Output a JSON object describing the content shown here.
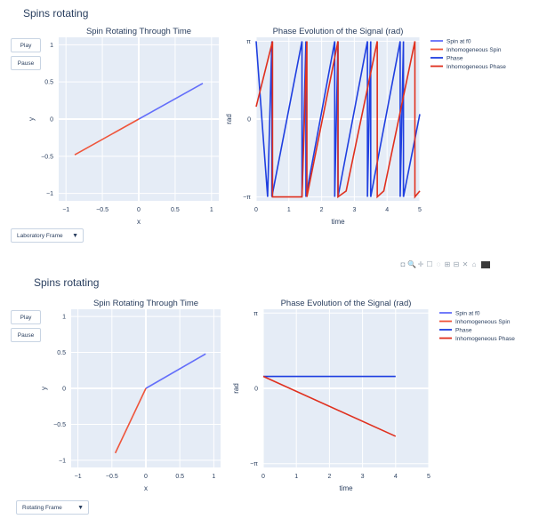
{
  "chart_data": [
    {
      "type": "line",
      "title": "Spin Rotating Through Time",
      "xlabel": "x",
      "ylabel": "y",
      "xlim": [
        -1.1,
        1.1
      ],
      "ylim": [
        -1.1,
        1.1
      ],
      "xticks": [
        -1,
        -0.5,
        0,
        0.5,
        1
      ],
      "xtick_labels": [
        "−1",
        "−0.5",
        "0",
        "0.5",
        "1"
      ],
      "yticks": [
        -1,
        -0.5,
        0,
        0.5,
        1
      ],
      "ytick_labels": [
        "−1",
        "−0.5",
        "0",
        "0.5",
        "1"
      ],
      "series": [
        {
          "name": "Spin at f0",
          "color": "#636efa",
          "x": [
            0,
            0.88
          ],
          "y": [
            0,
            0.48
          ]
        },
        {
          "name": "Inhomogeneous Spin",
          "color": "#ef553b",
          "x": [
            0,
            -0.88
          ],
          "y": [
            0,
            -0.48
          ]
        }
      ]
    },
    {
      "type": "line",
      "title": "Phase Evolution of the Signal (rad)",
      "xlabel": "time",
      "ylabel": "rad",
      "xlim": [
        0,
        5
      ],
      "ylim": [
        -3.3,
        3.3
      ],
      "xticks": [
        0,
        1,
        2,
        3,
        4,
        5
      ],
      "xtick_labels": [
        "0",
        "1",
        "2",
        "3",
        "4",
        "5"
      ],
      "yticks": [
        -3.14159,
        0,
        3.14159
      ],
      "ytick_labels": [
        "−π",
        "0",
        "π"
      ],
      "series": [
        {
          "name": "Phase",
          "color": "#1f3fe0",
          "x": [
            0,
            0.35,
            0.35,
            0.48,
            0.48,
            1.4,
            1.4,
            1.52,
            1.52,
            2.4,
            2.4,
            2.5,
            2.5,
            3.4,
            3.4,
            3.5,
            3.5,
            4.4,
            4.4,
            4.5,
            4.5,
            5
          ],
          "y": [
            3.14,
            -3.14,
            -3.14,
            3.14,
            -3.14,
            3.14,
            -3.14,
            3.14,
            -3.14,
            3.14,
            -3.14,
            3.14,
            -3.14,
            3.14,
            -3.14,
            3.14,
            -3.14,
            3.14,
            -3.14,
            3.14,
            -3.14,
            0.2
          ]
        },
        {
          "name": "Inhomogeneous Phase",
          "color": "#e0301e",
          "x": [
            0,
            0.5,
            0.5,
            1.4,
            1.4,
            1.55,
            1.55,
            2.5,
            2.5,
            2.75,
            2.75,
            3.7,
            3.7,
            3.9,
            3.9,
            4.85,
            4.85,
            5
          ],
          "y": [
            0.5,
            3.14,
            -3.14,
            -3.14,
            -3.14,
            3.14,
            -3.14,
            3.14,
            -3.14,
            -2.9,
            -2.9,
            3.14,
            -3.14,
            -2.9,
            -2.9,
            3.14,
            -3.14,
            -2.9
          ]
        }
      ],
      "legend": [
        "Spin at f0",
        "Inhomogeneous Spin",
        "Phase",
        "Inhomogeneous Phase"
      ],
      "legend_placement": "right"
    },
    {
      "type": "line",
      "title": "Spin Rotating Through Time",
      "xlabel": "x",
      "ylabel": "y",
      "xlim": [
        -1.1,
        1.1
      ],
      "ylim": [
        -1.1,
        1.1
      ],
      "xticks": [
        -1,
        -0.5,
        0,
        0.5,
        1
      ],
      "xtick_labels": [
        "−1",
        "−0.5",
        "0",
        "0.5",
        "1"
      ],
      "yticks": [
        -1,
        -0.5,
        0,
        0.5,
        1
      ],
      "ytick_labels": [
        "−1",
        "−0.5",
        "0",
        "0.5",
        "1"
      ],
      "series": [
        {
          "name": "Spin at f0",
          "color": "#636efa",
          "x": [
            0,
            0.88
          ],
          "y": [
            0,
            0.48
          ]
        },
        {
          "name": "Inhomogeneous Spin",
          "color": "#ef553b",
          "x": [
            0,
            -0.45
          ],
          "y": [
            0,
            -0.9
          ]
        }
      ]
    },
    {
      "type": "line",
      "title": "Phase Evolution of the Signal (rad)",
      "xlabel": "time",
      "ylabel": "rad",
      "xlim": [
        0,
        5
      ],
      "ylim": [
        -3.3,
        3.3
      ],
      "xticks": [
        0,
        1,
        2,
        3,
        4,
        5
      ],
      "xtick_labels": [
        "0",
        "1",
        "2",
        "3",
        "4",
        "5"
      ],
      "yticks": [
        -3.14159,
        0,
        3.14159
      ],
      "ytick_labels": [
        "−π",
        "0",
        "π"
      ],
      "series": [
        {
          "name": "Phase",
          "color": "#1f3fe0",
          "x": [
            0,
            4
          ],
          "y": [
            0.5,
            0.5
          ]
        },
        {
          "name": "Inhomogeneous Phase",
          "color": "#e0301e",
          "x": [
            0,
            4
          ],
          "y": [
            0.5,
            -2.0
          ]
        }
      ],
      "legend": [
        "Spin at f0",
        "Inhomogeneous Spin",
        "Phase",
        "Inhomogeneous Phase"
      ],
      "legend_placement": "right"
    }
  ],
  "panels": [
    {
      "heading": "Spins rotating",
      "play_label": "Play",
      "pause_label": "Pause",
      "frame_label": "Laboratory Frame"
    },
    {
      "heading": "Spins rotating",
      "play_label": "Play",
      "pause_label": "Pause",
      "frame_label": "Rotating Frame"
    }
  ],
  "legend_colors": {
    "Spin at f0": "#636efa",
    "Inhomogeneous Spin": "#ef553b",
    "Phase": "#1f3fe0",
    "Inhomogeneous Phase": "#e0301e"
  },
  "modebar_icons": [
    "camera-icon",
    "zoom-icon",
    "pan-icon",
    "box-select-icon",
    "lasso-icon",
    "zoom-in-icon",
    "zoom-out-icon",
    "autoscale-icon",
    "reset-axes-icon",
    "plotly-logo"
  ]
}
